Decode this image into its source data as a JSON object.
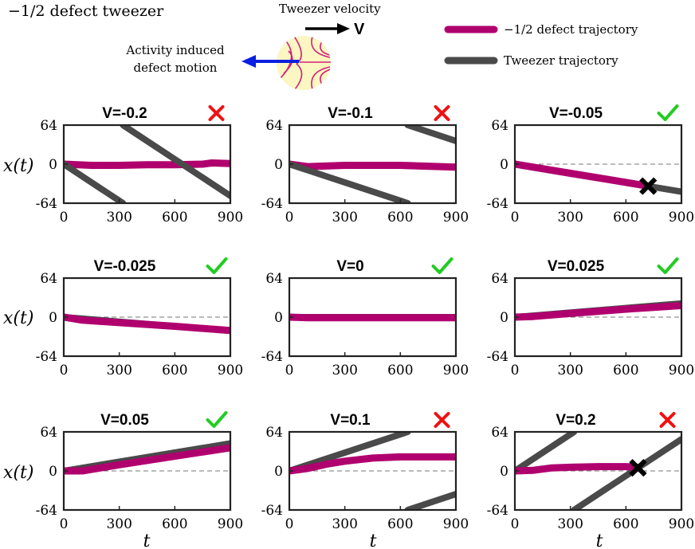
{
  "header": {
    "title": "−1/2 defect tweezer",
    "tweezer_velocity_label": "Tweezer velocity",
    "velocity_symbol": "V",
    "activity_label_line1": "Activity induced",
    "activity_label_line2": "defect motion"
  },
  "legend": [
    {
      "label": "−1/2 defect trajectory",
      "color": "#b0006e"
    },
    {
      "label": "Tweezer trajectory",
      "color": "#4a4a4a"
    }
  ],
  "colors": {
    "defect": "#b0006e",
    "tweezer": "#4a4a4a",
    "success": "#22cc22",
    "failure": "#ee1111",
    "defect_blob": "#fbf6c2",
    "activity_arrow": "#0a1fe0"
  },
  "axes_labels": {
    "xlabel": "t",
    "ylabel": "x(t)"
  },
  "chart_data": [
    {
      "type": "line",
      "title": "V=-0.2",
      "status": "fail",
      "xlim": [
        0,
        900
      ],
      "ylim": [
        -64,
        64
      ],
      "xticks": [
        "0",
        "300",
        "600",
        "900"
      ],
      "yticks": [
        "64",
        "0",
        "-64"
      ],
      "series": [
        {
          "role": "defect",
          "x": [
            0,
            150,
            300,
            450,
            600,
            750,
            800,
            900
          ],
          "y": [
            0,
            -2,
            -2,
            -1,
            -1,
            0,
            2,
            1
          ]
        },
        {
          "role": "tweezer",
          "x": [
            0,
            320
          ],
          "y": [
            0,
            -64
          ]
        },
        {
          "role": "tweezer",
          "x": [
            320,
            900
          ],
          "y": [
            64,
            -52
          ]
        }
      ]
    },
    {
      "type": "line",
      "title": "V=-0.1",
      "status": "fail",
      "xlim": [
        0,
        900
      ],
      "ylim": [
        -64,
        64
      ],
      "xticks": [
        "0",
        "300",
        "600",
        "900"
      ],
      "yticks": [
        "64",
        "0",
        "-64"
      ],
      "series": [
        {
          "role": "defect",
          "x": [
            0,
            100,
            300,
            600,
            900
          ],
          "y": [
            0,
            -4,
            -2,
            -2,
            -5
          ]
        },
        {
          "role": "tweezer",
          "x": [
            0,
            640
          ],
          "y": [
            0,
            -64
          ]
        },
        {
          "role": "tweezer",
          "x": [
            640,
            900
          ],
          "y": [
            64,
            38
          ]
        }
      ]
    },
    {
      "type": "line",
      "title": "V=-0.05",
      "status": "success",
      "xlim": [
        0,
        900
      ],
      "ylim": [
        -64,
        64
      ],
      "xticks": [
        "0",
        "300",
        "600",
        "900"
      ],
      "yticks": [
        "64",
        "0",
        "-64"
      ],
      "series": [
        {
          "role": "tweezer",
          "x": [
            0,
            900
          ],
          "y": [
            0,
            -45
          ]
        },
        {
          "role": "defect",
          "x": [
            0,
            100,
            300,
            500,
            720
          ],
          "y": [
            0,
            -5,
            -15,
            -25,
            -36
          ]
        }
      ],
      "marker": {
        "x": 720,
        "y": -36
      }
    },
    {
      "type": "line",
      "title": "V=-0.025",
      "status": "success",
      "xlim": [
        0,
        900
      ],
      "ylim": [
        -64,
        64
      ],
      "xticks": [
        "0",
        "300",
        "600",
        "900"
      ],
      "yticks": [
        "64",
        "0",
        "-64"
      ],
      "series": [
        {
          "role": "tweezer",
          "x": [
            0,
            900
          ],
          "y": [
            0,
            -22.5
          ]
        },
        {
          "role": "defect",
          "x": [
            0,
            100,
            300,
            600,
            900
          ],
          "y": [
            0,
            -5,
            -9,
            -15,
            -22
          ]
        }
      ]
    },
    {
      "type": "line",
      "title": "V=0",
      "status": "success",
      "xlim": [
        0,
        900
      ],
      "ylim": [
        -64,
        64
      ],
      "xticks": [
        "0",
        "300",
        "600",
        "900"
      ],
      "yticks": [
        "64",
        "0",
        "-64"
      ],
      "series": [
        {
          "role": "tweezer",
          "x": [
            0,
            900
          ],
          "y": [
            0,
            0
          ]
        },
        {
          "role": "defect",
          "x": [
            0,
            100,
            300,
            600,
            900
          ],
          "y": [
            0,
            -1,
            -1,
            -1,
            -1
          ]
        }
      ]
    },
    {
      "type": "line",
      "title": "V=0.025",
      "status": "success",
      "xlim": [
        0,
        900
      ],
      "ylim": [
        -64,
        64
      ],
      "xticks": [
        "0",
        "300",
        "600",
        "900"
      ],
      "yticks": [
        "64",
        "0",
        "-64"
      ],
      "series": [
        {
          "role": "tweezer",
          "x": [
            0,
            900
          ],
          "y": [
            0,
            22.5
          ]
        },
        {
          "role": "defect",
          "x": [
            0,
            100,
            300,
            600,
            900
          ],
          "y": [
            0,
            1,
            6,
            13,
            19
          ]
        }
      ]
    },
    {
      "type": "line",
      "title": "V=0.05",
      "status": "success",
      "xlim": [
        0,
        900
      ],
      "ylim": [
        -64,
        64
      ],
      "xticks": [
        "0",
        "300",
        "600",
        "900"
      ],
      "yticks": [
        "64",
        "0",
        "-64"
      ],
      "series": [
        {
          "role": "tweezer",
          "x": [
            0,
            900
          ],
          "y": [
            0,
            45
          ]
        },
        {
          "role": "defect",
          "x": [
            0,
            100,
            300,
            600,
            900
          ],
          "y": [
            0,
            0,
            10,
            24,
            38
          ]
        }
      ]
    },
    {
      "type": "line",
      "title": "V=0.1",
      "status": "fail",
      "xlim": [
        0,
        900
      ],
      "ylim": [
        -64,
        64
      ],
      "xticks": [
        "0",
        "300",
        "600",
        "900"
      ],
      "yticks": [
        "64",
        "0",
        "-64"
      ],
      "series": [
        {
          "role": "tweezer",
          "x": [
            0,
            640
          ],
          "y": [
            0,
            64
          ]
        },
        {
          "role": "tweezer",
          "x": [
            640,
            900
          ],
          "y": [
            -64,
            -38
          ]
        },
        {
          "role": "defect",
          "x": [
            0,
            100,
            200,
            300,
            450,
            600,
            900
          ],
          "y": [
            0,
            4,
            11,
            16,
            21,
            23,
            23
          ]
        }
      ]
    },
    {
      "type": "line",
      "title": "V=0.2",
      "status": "fail",
      "xlim": [
        0,
        900
      ],
      "ylim": [
        -64,
        64
      ],
      "xticks": [
        "0",
        "300",
        "600",
        "900"
      ],
      "yticks": [
        "64",
        "0",
        "-64"
      ],
      "series": [
        {
          "role": "tweezer",
          "x": [
            0,
            320
          ],
          "y": [
            0,
            64
          ]
        },
        {
          "role": "tweezer",
          "x": [
            320,
            900
          ],
          "y": [
            -64,
            52
          ]
        },
        {
          "role": "defect",
          "x": [
            0,
            100,
            200,
            300,
            450,
            600,
            660
          ],
          "y": [
            0,
            1,
            5,
            6,
            7,
            7,
            6
          ]
        }
      ],
      "marker": {
        "x": 665,
        "y": 5
      }
    }
  ]
}
